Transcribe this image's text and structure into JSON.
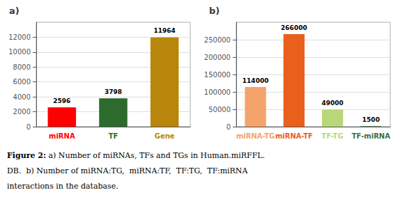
{
  "chart_data": [
    {
      "type": "bar",
      "title": "a)",
      "categories": [
        "miRNA",
        "TF",
        "Gene"
      ],
      "values": [
        2596,
        3798,
        11964
      ],
      "colors": [
        "#ff0000",
        "#2d6a2d",
        "#b8860b"
      ],
      "ylim": [
        0,
        14000
      ],
      "yticks": [
        0,
        2000,
        4000,
        6000,
        8000,
        10000,
        12000
      ],
      "grid": true,
      "data_labels": true
    },
    {
      "type": "bar",
      "title": "b)",
      "categories": [
        "miRNA-TG",
        "miRNA-TF",
        "TF-TG",
        "TF-miRNA"
      ],
      "values": [
        114000,
        266000,
        49000,
        1500
      ],
      "colors": [
        "#f4a46a",
        "#e8601c",
        "#b8d878",
        "#3a6e3a"
      ],
      "ylim": [
        0,
        300000
      ],
      "yticks": [
        0,
        50000,
        100000,
        150000,
        200000,
        250000
      ],
      "grid": true,
      "data_labels": true
    }
  ],
  "caption_bold": "Figure 2:",
  "caption": [
    " a) Number of miRNAs, TFs and TGs in Human.miRFFL.",
    "DB.  b) Number of miRNA:TG,  miRNA:TF,  TF:TG,  TF:miRNA",
    "interactions in the database."
  ]
}
